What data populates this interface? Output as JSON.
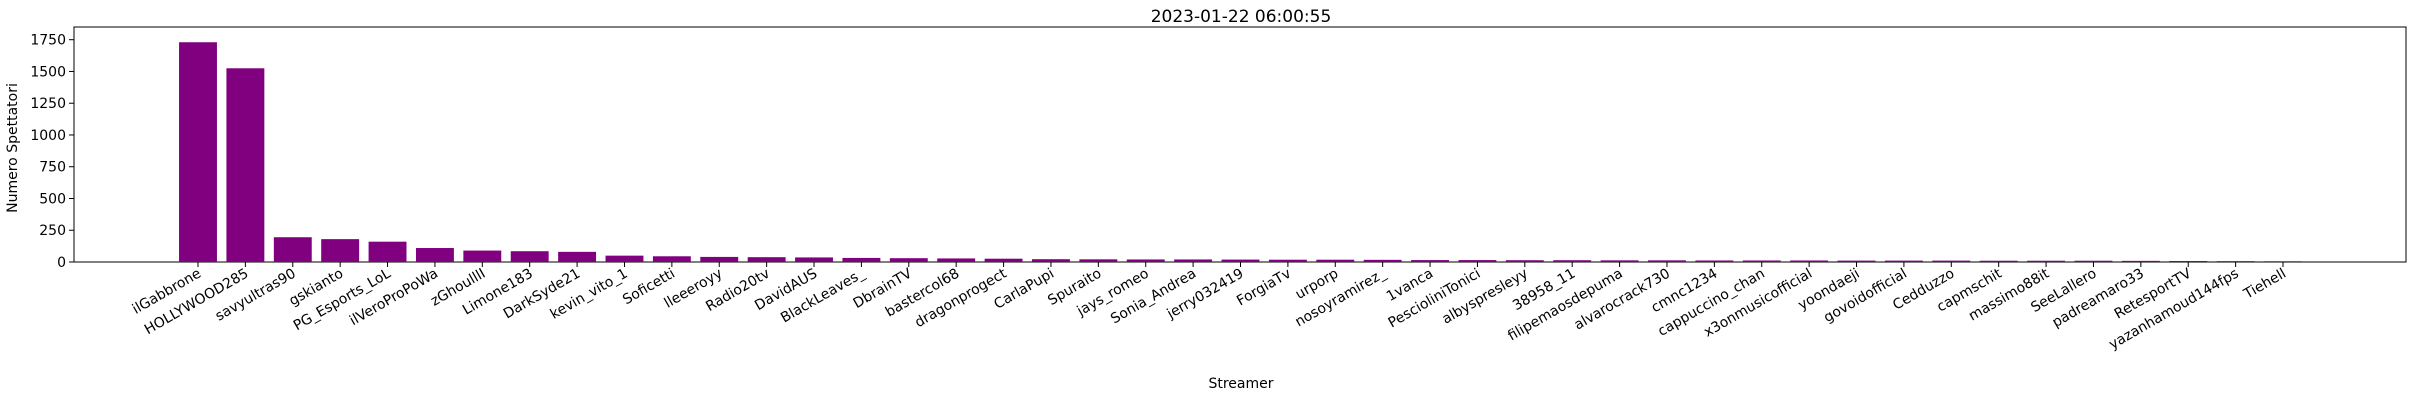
{
  "chart_data": {
    "type": "bar",
    "title": "2023-01-22 06:00:55",
    "xlabel": "Streamer",
    "ylabel": "Numero Spettatori",
    "ylim": [
      0,
      1850
    ],
    "yticks": [
      0,
      250,
      500,
      750,
      1000,
      1250,
      1500,
      1750
    ],
    "bar_color": "#800080",
    "grid": false,
    "categories": [
      "ilGabbrone",
      "HOLLYWOOD285",
      "savyultras90",
      "gskianto",
      "PG_Esports_LoL",
      "ilVeroProPoWa",
      "zGhoulllI",
      "Limone183",
      "DarkSyde21",
      "kevin_vito_1",
      "Soficetti",
      "lleeeroyy",
      "Radio20tv",
      "DavidAUS",
      "BlackLeaves_",
      "DbrainTV",
      "bastercol68",
      "dragonprogect",
      "CarlaPupi",
      "Spuraito",
      "jays_romeo",
      "Sonia_Andrea",
      "jerry032419",
      "ForgiaTv",
      "urporp",
      "nosoyramirez_",
      "1vanca",
      "PescioliniTonici",
      "albyspresleyy",
      "38958_11",
      "filipemaosdepuma",
      "alvarocrack730",
      "cmnc1234",
      "cappuccino_chan",
      "x3onmusicofficial",
      "yoondaeji",
      "govoidofficial",
      "Cedduzzo",
      "capmschit",
      "massimo88it",
      "SeeLallero",
      "padreamaro33",
      "RetesportTV",
      "yazanhamoud144fps",
      "Tiehell"
    ],
    "values": [
      1730,
      1525,
      195,
      180,
      160,
      110,
      90,
      85,
      80,
      50,
      45,
      40,
      38,
      36,
      32,
      30,
      28,
      26,
      22,
      21,
      20,
      20,
      19,
      18,
      18,
      17,
      15,
      15,
      14,
      14,
      13,
      13,
      12,
      12,
      12,
      11,
      11,
      11,
      10,
      10,
      10,
      9,
      8,
      7,
      6
    ]
  }
}
